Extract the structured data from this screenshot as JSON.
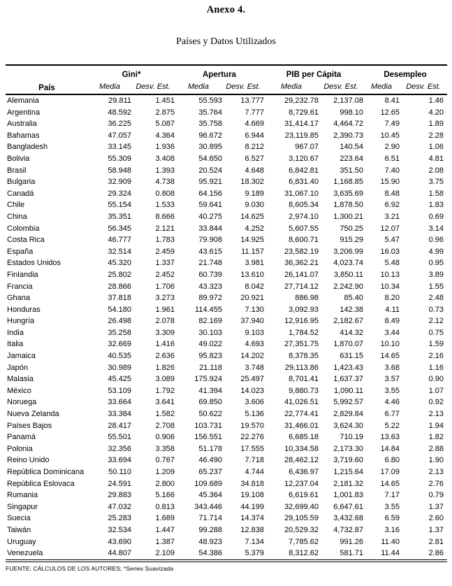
{
  "title": "Anexo 4.",
  "subtitle": "Países y Datos Utilizados",
  "table": {
    "pais_header": "País",
    "groups": [
      "Gini*",
      "Apertura",
      "PIB per Cápita",
      "Desempleo"
    ],
    "subheaders": [
      "Media",
      "Desv. Est."
    ],
    "rows": [
      {
        "pais": "Alemania",
        "values": [
          "29.811",
          "1.451",
          "55.593",
          "13.777",
          "29,232.78",
          "2,137.08",
          "8.41",
          "1.46"
        ]
      },
      {
        "pais": "Argentina",
        "values": [
          "48.592",
          "2.875",
          "35.764",
          "7.777",
          "8,729.61",
          "998.10",
          "12.65",
          "4.20"
        ]
      },
      {
        "pais": "Australia",
        "values": [
          "36.225",
          "5.087",
          "35.758",
          "4.669",
          "31,414.17",
          "4,464.72",
          "7.49",
          "1.89"
        ]
      },
      {
        "pais": "Bahamas",
        "values": [
          "47.057",
          "4.364",
          "96.672",
          "6.944",
          "23,119.85",
          "2,390.73",
          "10.45",
          "2.28"
        ]
      },
      {
        "pais": "Bangladesh",
        "values": [
          "33.145",
          "1.936",
          "30.895",
          "8.212",
          "967.07",
          "140.54",
          "2.90",
          "1.06"
        ]
      },
      {
        "pais": "Bolivia",
        "values": [
          "55.309",
          "3.408",
          "54.650",
          "6.527",
          "3,120.67",
          "223.64",
          "6.51",
          "4.81"
        ]
      },
      {
        "pais": "Brasil",
        "values": [
          "58.948",
          "1.393",
          "20.524",
          "4.648",
          "6,842.81",
          "351.50",
          "7.40",
          "2.08"
        ]
      },
      {
        "pais": "Bulgaria",
        "values": [
          "32.909",
          "4.738",
          "95.921",
          "18.302",
          "6,831.40",
          "1,168.85",
          "15.90",
          "3.75"
        ]
      },
      {
        "pais": "Canadá",
        "values": [
          "29.324",
          "0.808",
          "64.156",
          "9.189",
          "31,067.10",
          "3,635.69",
          "8.48",
          "1.58"
        ]
      },
      {
        "pais": "Chile",
        "values": [
          "55.154",
          "1.533",
          "59.641",
          "9.030",
          "8,605.34",
          "1,878.50",
          "6.92",
          "1.83"
        ]
      },
      {
        "pais": "China",
        "values": [
          "35.351",
          "8.666",
          "40.275",
          "14.625",
          "2,974.10",
          "1,300.21",
          "3.21",
          "0.69"
        ]
      },
      {
        "pais": "Colombia",
        "values": [
          "56.345",
          "2.121",
          "33.844",
          "4.252",
          "5,607.55",
          "750.25",
          "12.07",
          "3.14"
        ]
      },
      {
        "pais": "Costa Rica",
        "values": [
          "46.777",
          "1.783",
          "79.908",
          "14.925",
          "8,600.71",
          "915.29",
          "5.47",
          "0.96"
        ]
      },
      {
        "pais": "España",
        "values": [
          "32.514",
          "2.459",
          "43.615",
          "11.157",
          "23,582.19",
          "3,206.99",
          "16.03",
          "4.99"
        ]
      },
      {
        "pais": "Estados Unidos",
        "values": [
          "45.320",
          "1.337",
          "21.748",
          "3.981",
          "36,362.21",
          "4,023.74",
          "5.48",
          "0.95"
        ]
      },
      {
        "pais": "Finlandia",
        "values": [
          "25.802",
          "2.452",
          "60.739",
          "13.610",
          "26,141.07",
          "3,850.11",
          "10.13",
          "3.89"
        ]
      },
      {
        "pais": "Francia",
        "values": [
          "28.866",
          "1.706",
          "43.323",
          "8.042",
          "27,714.12",
          "2,242.90",
          "10.34",
          "1.55"
        ]
      },
      {
        "pais": "Ghana",
        "values": [
          "37.818",
          "3.273",
          "89.972",
          "20.921",
          "886.98",
          "85.40",
          "8.20",
          "2.48"
        ]
      },
      {
        "pais": "Honduras",
        "values": [
          "54.180",
          "1.961",
          "114.455",
          "7.130",
          "3,092.93",
          "142.38",
          "4.11",
          "0.73"
        ]
      },
      {
        "pais": "Hungría",
        "values": [
          "26.498",
          "2.078",
          "82.169",
          "37.940",
          "12,916.95",
          "2,182.67",
          "8.49",
          "2.12"
        ]
      },
      {
        "pais": "India",
        "values": [
          "35.258",
          "3.309",
          "30.103",
          "9.103",
          "1,784.52",
          "414.32",
          "3.44",
          "0.75"
        ]
      },
      {
        "pais": "Italia",
        "values": [
          "32.669",
          "1.416",
          "49.022",
          "4.693",
          "27,351.75",
          "1,870.07",
          "10.10",
          "1.59"
        ]
      },
      {
        "pais": "Jamaica",
        "values": [
          "40.535",
          "2.636",
          "95.823",
          "14.202",
          "8,378.35",
          "631.15",
          "14.65",
          "2.16"
        ]
      },
      {
        "pais": "Japón",
        "values": [
          "30.989",
          "1.826",
          "21.118",
          "3.748",
          "29,113.86",
          "1,423.43",
          "3.68",
          "1.16"
        ]
      },
      {
        "pais": "Malasia",
        "values": [
          "45.425",
          "3.089",
          "175.924",
          "25.497",
          "8,701.41",
          "1,637.37",
          "3.57",
          "0.90"
        ]
      },
      {
        "pais": "México",
        "values": [
          "53.109",
          "1.792",
          "41.394",
          "14.023",
          "9,880.73",
          "1,090.11",
          "3.55",
          "1.07"
        ]
      },
      {
        "pais": "Noruega",
        "values": [
          "33.664",
          "3.641",
          "69.850",
          "3.606",
          "41,026.51",
          "5,992.57",
          "4.46",
          "0.92"
        ]
      },
      {
        "pais": "Nueva Zelanda",
        "values": [
          "33.384",
          "1.582",
          "50.622",
          "5.136",
          "22,774.41",
          "2,829.84",
          "6.77",
          "2.13"
        ]
      },
      {
        "pais": "Países Bajos",
        "values": [
          "28.417",
          "2.708",
          "103.731",
          "19.570",
          "31,466.01",
          "3,624.30",
          "5.22",
          "1.94"
        ]
      },
      {
        "pais": "Panamá",
        "values": [
          "55.501",
          "0.906",
          "156.551",
          "22.276",
          "6,685.18",
          "710.19",
          "13.63",
          "1.82"
        ]
      },
      {
        "pais": "Polonia",
        "values": [
          "32.356",
          "3.358",
          "51.178",
          "17.555",
          "10,334.58",
          "2,173.30",
          "14.84",
          "2.88"
        ]
      },
      {
        "pais": "Reino Unido",
        "values": [
          "33.694",
          "0.767",
          "46.490",
          "7.718",
          "28,462.12",
          "3,719.60",
          "6.80",
          "1.90"
        ]
      },
      {
        "pais": "República Dominicana",
        "values": [
          "50.110",
          "1.209",
          "65.237",
          "4.744",
          "6,436.97",
          "1,215.64",
          "17.09",
          "2.13"
        ]
      },
      {
        "pais": "República Eslovaca",
        "values": [
          "24.591",
          "2.800",
          "109.689",
          "34.818",
          "12,237.04",
          "2,181.32",
          "14.65",
          "2.76"
        ]
      },
      {
        "pais": "Rumania",
        "values": [
          "29.883",
          "5.166",
          "45.364",
          "19.108",
          "6,619.61",
          "1,001.83",
          "7.17",
          "0.79"
        ]
      },
      {
        "pais": "Singapur",
        "values": [
          "47.032",
          "0.813",
          "343.446",
          "44.199",
          "32,699.40",
          "6,647.61",
          "3.55",
          "1.37"
        ]
      },
      {
        "pais": "Suecia",
        "values": [
          "25.283",
          "1.689",
          "71.714",
          "14.374",
          "29,105.59",
          "3,432.68",
          "6.59",
          "2.60"
        ]
      },
      {
        "pais": "Taiwán",
        "values": [
          "32.534",
          "1.447",
          "99.288",
          "12.838",
          "20,529.32",
          "4,732.87",
          "3.16",
          "1.37"
        ]
      },
      {
        "pais": "Uruguay",
        "values": [
          "43.690",
          "1.387",
          "48.923",
          "7.134",
          "7,785.62",
          "991.26",
          "11.40",
          "2.81"
        ]
      },
      {
        "pais": "Venezuela",
        "values": [
          "44.807",
          "2.109",
          "54.386",
          "5.379",
          "8,312.62",
          "581.71",
          "11.44",
          "2.86"
        ]
      }
    ]
  },
  "footer": "FUENTE: CÁLCULOS DE LOS AUTORES; *Series Suavizada"
}
